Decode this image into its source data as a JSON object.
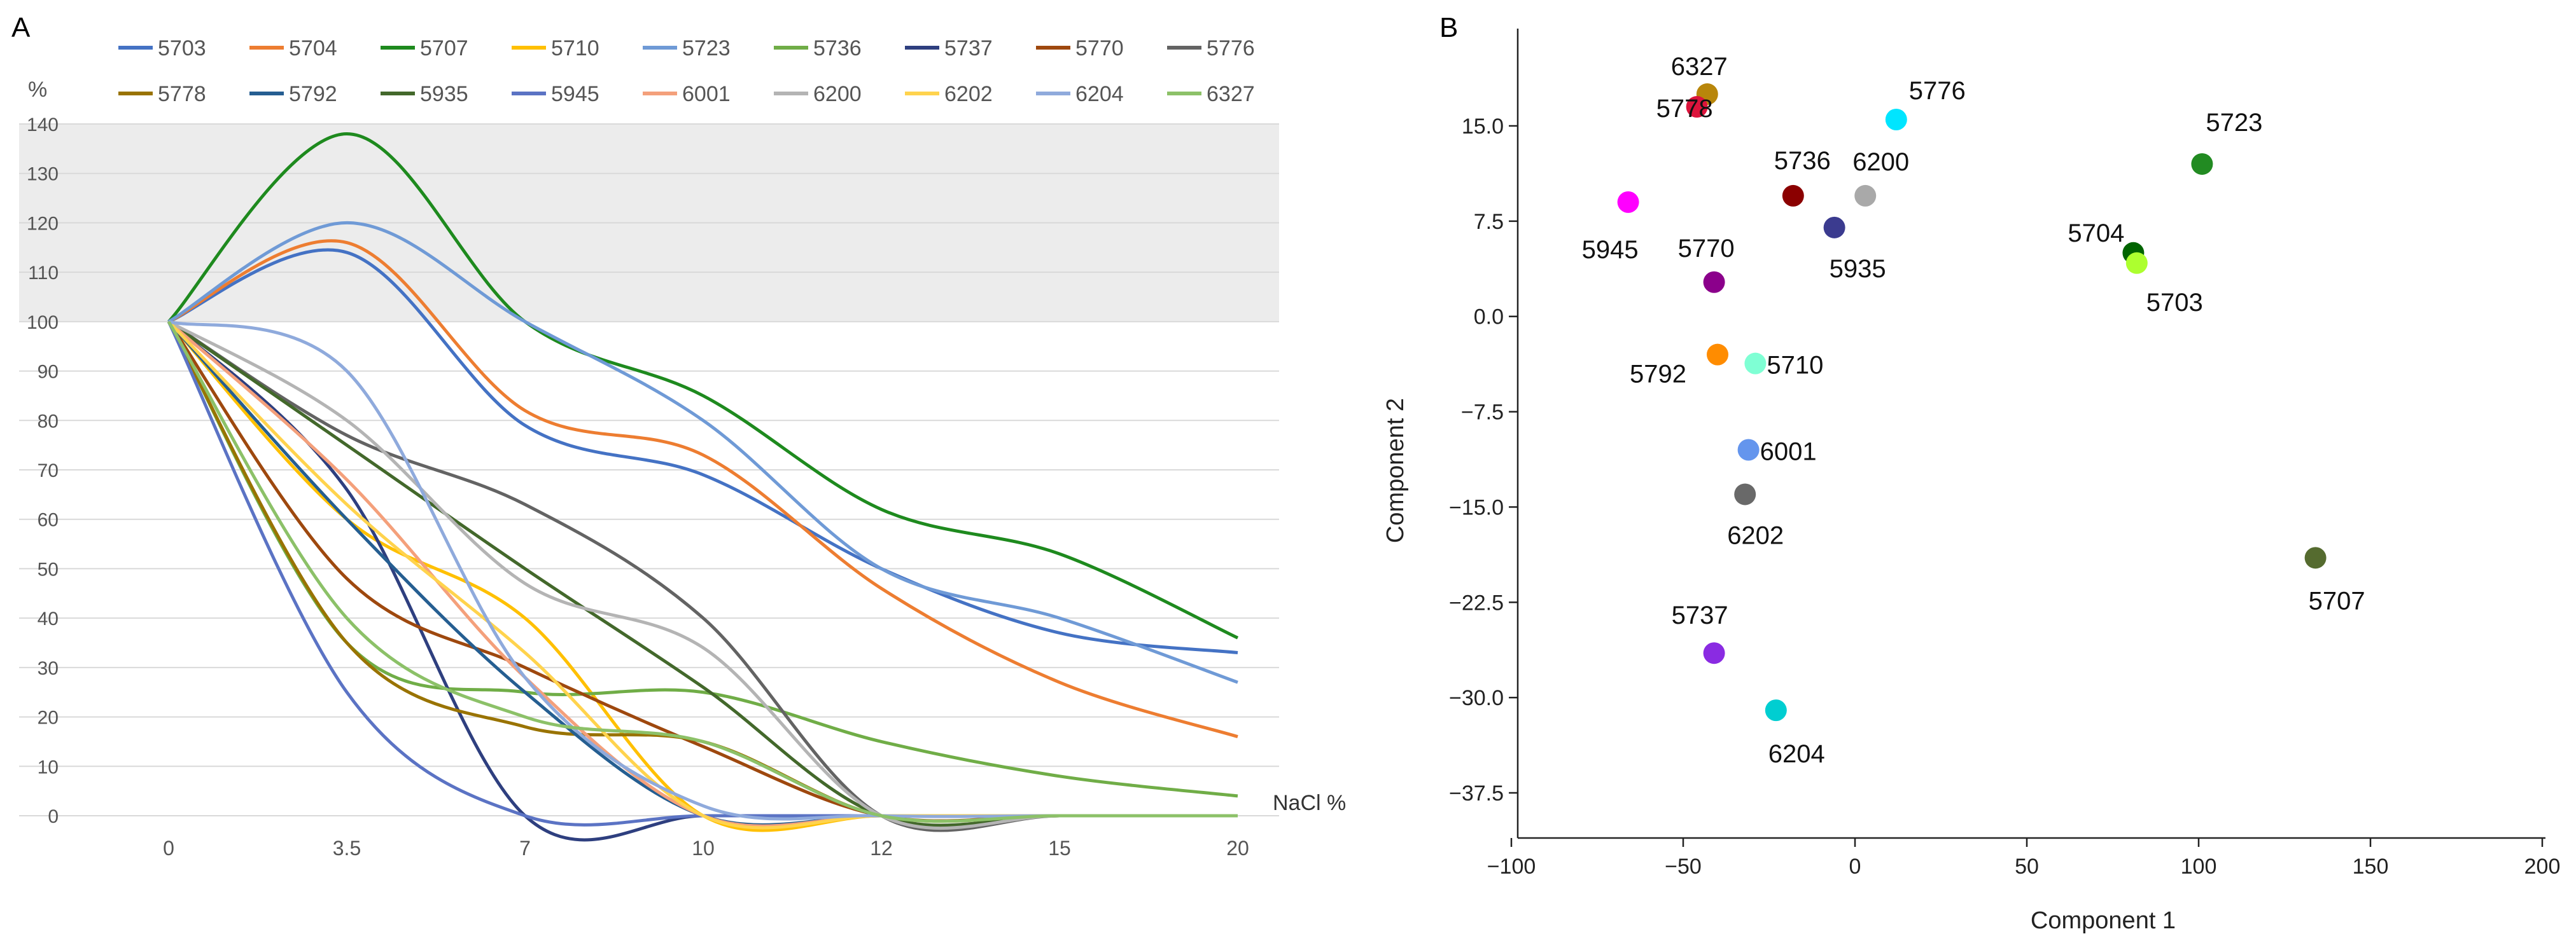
{
  "panels": {
    "a_label": "A",
    "b_label": "B"
  },
  "chart_data": [
    {
      "type": "line",
      "panel": "A",
      "title": "",
      "ylabel": "%",
      "xlabel": "NaCl %",
      "categories": [
        "0",
        "3.5",
        "7",
        "10",
        "12",
        "15",
        "20"
      ],
      "yticks": [
        0,
        10,
        20,
        30,
        40,
        50,
        60,
        70,
        80,
        90,
        100,
        110,
        120,
        130,
        140
      ],
      "ylim": [
        0,
        140
      ],
      "shaded_band": [
        100,
        140
      ],
      "legend_position": "top",
      "series": [
        {
          "name": "5703",
          "color": "#4472C4",
          "values": [
            100,
            114,
            79,
            69,
            50,
            37,
            33
          ]
        },
        {
          "name": "5704",
          "color": "#ED7D31",
          "values": [
            100,
            116,
            82,
            73,
            46,
            27,
            16
          ]
        },
        {
          "name": "5707",
          "color": "#1E8A1E",
          "values": [
            100,
            138,
            100,
            85,
            62,
            53,
            36
          ]
        },
        {
          "name": "5710",
          "color": "#FFC000",
          "values": [
            100,
            60,
            40,
            0,
            0,
            0,
            0
          ]
        },
        {
          "name": "5723",
          "color": "#6F9AD6",
          "values": [
            100,
            120,
            100,
            80,
            50,
            40,
            27
          ]
        },
        {
          "name": "5736",
          "color": "#70AD47",
          "values": [
            100,
            35,
            25,
            25,
            15,
            8,
            4
          ]
        },
        {
          "name": "5737",
          "color": "#2E3F7F",
          "values": [
            100,
            66,
            0,
            0,
            0,
            0,
            0
          ]
        },
        {
          "name": "5770",
          "color": "#9E480E",
          "values": [
            100,
            48,
            30,
            14,
            0,
            0,
            0
          ]
        },
        {
          "name": "5776",
          "color": "#636363",
          "values": [
            100,
            77,
            63,
            40,
            0,
            0,
            0
          ]
        },
        {
          "name": "5778",
          "color": "#997300",
          "values": [
            100,
            35,
            18,
            15,
            0,
            0,
            0
          ]
        },
        {
          "name": "5792",
          "color": "#255E91",
          "values": [
            100,
            60,
            25,
            0,
            0,
            0,
            0
          ]
        },
        {
          "name": "5935",
          "color": "#43682B",
          "values": [
            100,
            75,
            50,
            26,
            0,
            0,
            0
          ]
        },
        {
          "name": "5945",
          "color": "#5B73C4",
          "values": [
            100,
            25,
            0,
            0,
            0,
            0,
            0
          ]
        },
        {
          "name": "6001",
          "color": "#F4A07B",
          "values": [
            100,
            68,
            28,
            0,
            0,
            0,
            0
          ]
        },
        {
          "name": "6200",
          "color": "#B4B4B4",
          "values": [
            100,
            80,
            47,
            34,
            0,
            0,
            0
          ]
        },
        {
          "name": "6202",
          "color": "#FFD34D",
          "values": [
            100,
            63,
            33,
            0,
            0,
            0,
            0
          ]
        },
        {
          "name": "6204",
          "color": "#8FAADC",
          "values": [
            100,
            90,
            28,
            2,
            0,
            0,
            0
          ]
        },
        {
          "name": "6327",
          "color": "#8CC168",
          "values": [
            100,
            40,
            20,
            15,
            0,
            0,
            0
          ]
        }
      ]
    },
    {
      "type": "scatter",
      "panel": "B",
      "title": "",
      "xlabel": "Component 1",
      "ylabel": "Component 2",
      "xlim": [
        -100,
        200
      ],
      "ylim": [
        -40,
        20
      ],
      "xticks": [
        -100,
        -50,
        0,
        50,
        100,
        150,
        200
      ],
      "yticks": [
        -37.5,
        -30.0,
        -22.5,
        -15.0,
        -7.5,
        0.0,
        7.5,
        15.0
      ],
      "xtick_labels": [
        "−100",
        "−50",
        "0",
        "50",
        "100",
        "150",
        "200"
      ],
      "ytick_labels": [
        "−37.5",
        "−30.0",
        "−22.5",
        "−15.0",
        "−7.5",
        "0.0",
        "7.5",
        "15.0"
      ],
      "points": [
        {
          "label": "6327",
          "x": -43,
          "y": 17.5,
          "color": "#B8860B"
        },
        {
          "label": "5778",
          "x": -46,
          "y": 16.5,
          "color": "#DC143C"
        },
        {
          "label": "5776",
          "x": 12,
          "y": 15.5,
          "color": "#00E5FF"
        },
        {
          "label": "5723",
          "x": 101,
          "y": 12,
          "color": "#228B22"
        },
        {
          "label": "5736",
          "x": -18,
          "y": 9.5,
          "color": "#8B0000"
        },
        {
          "label": "6200",
          "x": 3,
          "y": 9.5,
          "color": "#A9A9A9"
        },
        {
          "label": "5945",
          "x": -66,
          "y": 9,
          "color": "#FF00FF"
        },
        {
          "label": "5935",
          "x": -6,
          "y": 7,
          "color": "#3B3B8F"
        },
        {
          "label": "5704",
          "x": 81,
          "y": 5,
          "color": "#006400"
        },
        {
          "label": "5703",
          "x": 82,
          "y": 4.2,
          "color": "#ADFF2F"
        },
        {
          "label": "5770",
          "x": -41,
          "y": 2.7,
          "color": "#8B008B"
        },
        {
          "label": "5792",
          "x": -40,
          "y": -3,
          "color": "#FF8C00"
        },
        {
          "label": "5710",
          "x": -29,
          "y": -3.7,
          "color": "#7FFFD4"
        },
        {
          "label": "6001",
          "x": -31,
          "y": -10.5,
          "color": "#6495ED"
        },
        {
          "label": "6202",
          "x": -32,
          "y": -14,
          "color": "#696969"
        },
        {
          "label": "5707",
          "x": 134,
          "y": -19,
          "color": "#556B2F"
        },
        {
          "label": "5737",
          "x": -41,
          "y": -26.5,
          "color": "#8A2BE2"
        },
        {
          "label": "6204",
          "x": -23,
          "y": -31,
          "color": "#00CED1"
        }
      ]
    }
  ]
}
